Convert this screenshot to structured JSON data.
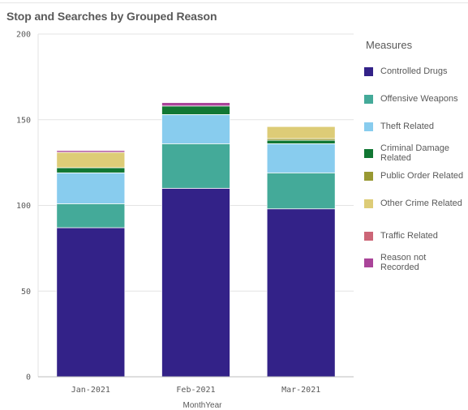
{
  "chart_data": {
    "type": "bar",
    "stacked": true,
    "title": "Stop and Searches by Grouped Reason",
    "xlabel": "MonthYear",
    "ylabel": "",
    "ylim": [
      0,
      200
    ],
    "yticks": [
      0,
      50,
      100,
      150,
      200
    ],
    "categories": [
      "Jan-2021",
      "Feb-2021",
      "Mar-2021"
    ],
    "legend_title": "Measures",
    "legend_position": "right",
    "grid": true,
    "series": [
      {
        "name": "Controlled Drugs",
        "color": "#332288",
        "values": [
          87,
          110,
          98
        ]
      },
      {
        "name": "Offensive Weapons",
        "color": "#44aa99",
        "values": [
          14,
          26,
          21
        ]
      },
      {
        "name": "Theft Related",
        "color": "#88ccee",
        "values": [
          18,
          17,
          17
        ]
      },
      {
        "name": "Criminal Damage Related",
        "color": "#117733",
        "values": [
          3,
          5,
          2
        ]
      },
      {
        "name": "Public Order Related",
        "color": "#999933",
        "values": [
          0,
          0,
          1
        ]
      },
      {
        "name": "Other Crime Related",
        "color": "#ddcc77",
        "values": [
          9,
          0,
          7
        ]
      },
      {
        "name": "Traffic Related",
        "color": "#cc6677",
        "values": [
          0,
          0,
          0
        ]
      },
      {
        "name": "Reason not Recorded",
        "color": "#aa4499",
        "values": [
          1,
          2,
          0
        ]
      }
    ]
  }
}
